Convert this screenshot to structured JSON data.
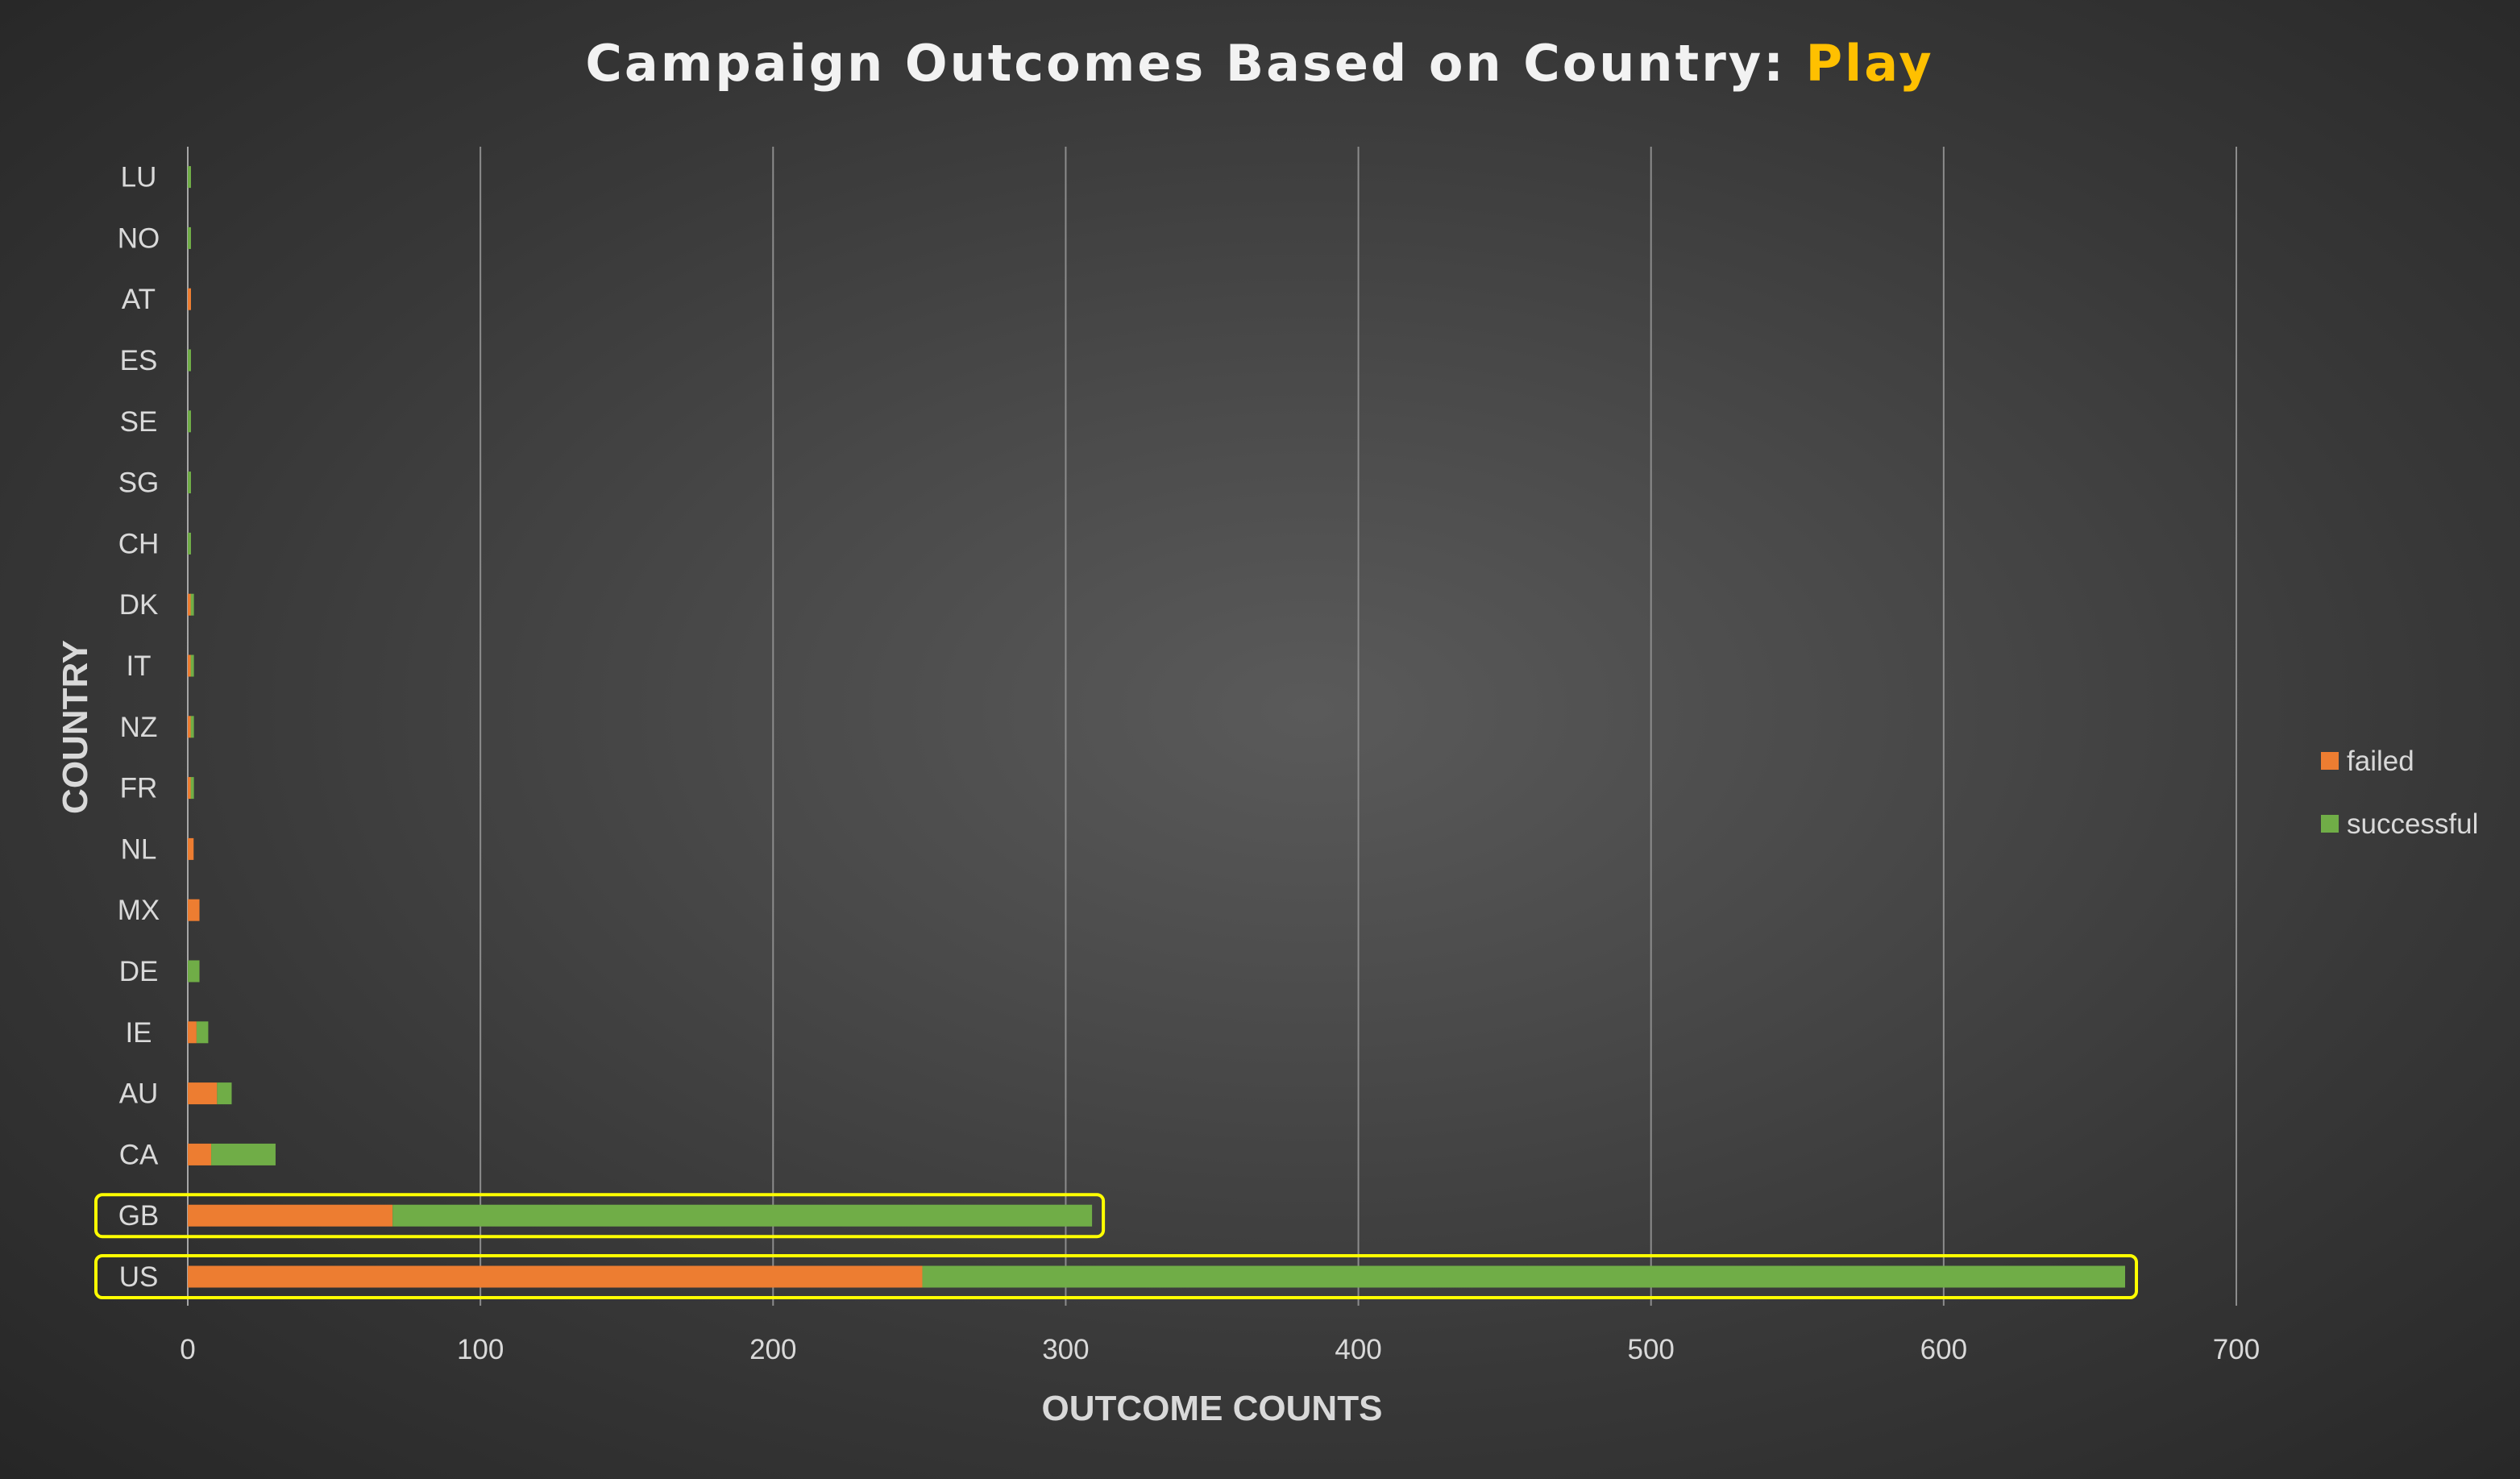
{
  "chart_data": {
    "type": "bar",
    "orientation": "horizontal",
    "stacked": true,
    "title": "Campaign Outcomes Based on Country: ",
    "title_highlight": "Play",
    "xlabel": "OUTCOME COUNTS",
    "ylabel": "COUNTRY",
    "xlim": [
      0,
      700
    ],
    "xticks": [
      "0",
      "100",
      "200",
      "300",
      "400",
      "500",
      "600",
      "700"
    ],
    "grid": "vertical",
    "legend_position": "right",
    "categories": [
      "US",
      "GB",
      "CA",
      "AU",
      "IE",
      "DE",
      "MX",
      "NL",
      "FR",
      "NZ",
      "IT",
      "DK",
      "CH",
      "SG",
      "SE",
      "ES",
      "AT",
      "NO",
      "LU"
    ],
    "series": [
      {
        "name": "failed",
        "color": "#ed7d31",
        "values": [
          251,
          70,
          8,
          10,
          3,
          0,
          4,
          2,
          1,
          1,
          1,
          1,
          0,
          0,
          0,
          0,
          1,
          0,
          0
        ]
      },
      {
        "name": "successful",
        "color": "#70ad47",
        "values": [
          411,
          239,
          22,
          5,
          4,
          4,
          0,
          0,
          1,
          1,
          1,
          1,
          1,
          1,
          1,
          1,
          0,
          1,
          1
        ]
      }
    ],
    "highlighted_categories": [
      "US",
      "GB"
    ],
    "highlight_color": "#ffff00",
    "title_color": "#f2f2f2",
    "title_highlight_color": "#ffc000"
  }
}
